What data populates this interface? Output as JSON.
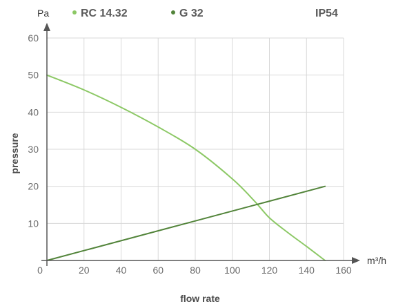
{
  "chart_data": {
    "type": "line",
    "xlabel": "flow rate",
    "ylabel": "pressure",
    "x_unit": "m³/h",
    "y_unit": "Pa",
    "tag": "IP54",
    "xlim": [
      0,
      160
    ],
    "ylim": [
      0,
      60
    ],
    "x_ticks": [
      0,
      20,
      40,
      60,
      80,
      100,
      120,
      140,
      160
    ],
    "y_ticks": [
      10,
      20,
      30,
      40,
      50,
      60
    ],
    "grid": true,
    "legend_position": "top",
    "series": [
      {
        "name": "RC 14.32",
        "color": "#8cc865",
        "x": [
          0,
          20,
          40,
          60,
          80,
          100,
          112,
          120,
          130,
          140,
          150
        ],
        "y": [
          50,
          46,
          41.3,
          36,
          30,
          22,
          16,
          11.5,
          7.5,
          3.8,
          0
        ]
      },
      {
        "name": "G 32",
        "color": "#52843a",
        "x": [
          0,
          150
        ],
        "y": [
          0,
          20
        ]
      }
    ],
    "axis_color": "#555555",
    "grid_color": "#d8d8d8"
  }
}
